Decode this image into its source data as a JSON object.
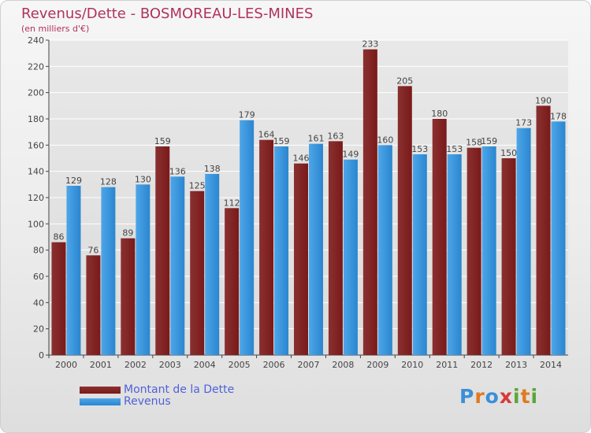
{
  "title": "Revenus/Dette - BOSMOREAU-LES-MINES",
  "subtitle": "(en milliers d'€)",
  "logo": {
    "letters": [
      "P",
      "r",
      "o",
      "x",
      "i",
      "t",
      "i"
    ]
  },
  "colors": {
    "dette": "#7a1a1a",
    "dette_light": "#8a3030",
    "revenus": "#4ea6e8",
    "revenus_dark": "#2a86d0",
    "axis": "#444444",
    "grid": "#ffffff"
  },
  "chart_data": {
    "type": "bar",
    "categories": [
      "2000",
      "2001",
      "2002",
      "2003",
      "2004",
      "2005",
      "2006",
      "2007",
      "2008",
      "2009",
      "2010",
      "2011",
      "2012",
      "2013",
      "2014"
    ],
    "series": [
      {
        "name": "Montant de la Dette",
        "values": [
          86,
          76,
          89,
          159,
          125,
          112,
          164,
          146,
          163,
          233,
          205,
          180,
          158,
          150,
          190
        ]
      },
      {
        "name": "Revenus",
        "values": [
          129,
          128,
          130,
          136,
          138,
          179,
          159,
          161,
          149,
          160,
          153,
          153,
          159,
          173,
          178
        ]
      }
    ],
    "ylim": [
      0,
      240
    ],
    "yticks": [
      0,
      20,
      40,
      60,
      80,
      100,
      120,
      140,
      160,
      180,
      200,
      220,
      240
    ],
    "grid": true,
    "legend": "bottom-left"
  }
}
